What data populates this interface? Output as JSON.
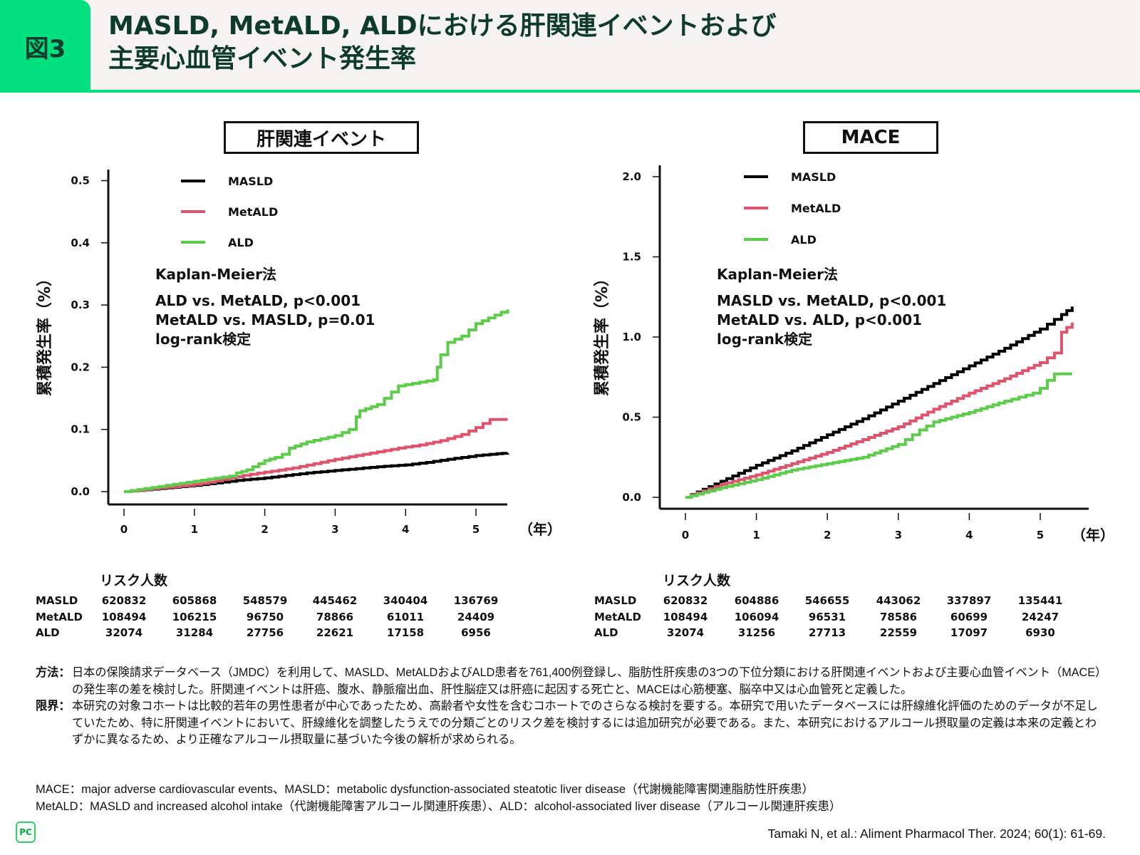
{
  "header": {
    "figure_label": "図3",
    "title_line1": "MASLD, MetALD, ALDにおける肝関連イベントおよび",
    "title_line2": "主要心血管イベント発生率"
  },
  "colors": {
    "accent": "#00e07f",
    "title_text": "#0f3a2e",
    "MASLD": "#000000",
    "MetALD": "#e0536d",
    "ALD": "#5ccc4a"
  },
  "chart_data": [
    {
      "type": "line",
      "subtype": "kaplan-meier-step",
      "title": "肝関連イベント",
      "xlabel": "（年）",
      "ylabel": "累積発生率（%）",
      "xlim": [
        0,
        5.5
      ],
      "ylim": [
        0,
        0.5
      ],
      "xticks": [
        "0",
        "1",
        "2",
        "3",
        "4",
        "5"
      ],
      "yticks": [
        "0.0",
        "0.1",
        "0.2",
        "0.3",
        "0.4",
        "0.5"
      ],
      "legend": [
        "MASLD",
        "MetALD",
        "ALD"
      ],
      "legend_position": "top-left",
      "annotations": [
        "Kaplan-Meier法",
        "ALD vs. MetALD, p<0.001",
        "MetALD vs. MASLD, p=0.01",
        "log-rank検定"
      ],
      "series": [
        {
          "name": "MASLD",
          "x": [
            0,
            0.3,
            0.6,
            1.0,
            1.3,
            1.6,
            2.0,
            2.3,
            2.6,
            3.0,
            3.3,
            3.6,
            4.0,
            4.3,
            4.6,
            5.0,
            5.3,
            5.45
          ],
          "y": [
            0,
            0.003,
            0.006,
            0.01,
            0.014,
            0.018,
            0.022,
            0.026,
            0.03,
            0.034,
            0.037,
            0.04,
            0.043,
            0.047,
            0.052,
            0.058,
            0.061,
            0.062
          ]
        },
        {
          "name": "MetALD",
          "x": [
            0,
            0.5,
            0.9,
            1.2,
            1.5,
            1.8,
            2.1,
            2.4,
            2.7,
            3.0,
            3.3,
            3.6,
            3.9,
            4.2,
            4.5,
            4.8,
            5.0,
            5.2,
            5.45
          ],
          "y": [
            0,
            0.006,
            0.01,
            0.015,
            0.022,
            0.028,
            0.033,
            0.038,
            0.045,
            0.052,
            0.058,
            0.064,
            0.07,
            0.075,
            0.082,
            0.092,
            0.103,
            0.116,
            0.116
          ]
        },
        {
          "name": "ALD",
          "x": [
            0,
            0.3,
            0.6,
            0.9,
            1.2,
            1.5,
            1.6,
            1.75,
            2.0,
            2.15,
            2.25,
            2.35,
            2.6,
            3.0,
            3.2,
            3.3,
            3.35,
            3.6,
            3.8,
            3.9,
            4.4,
            4.45,
            4.5,
            4.6,
            4.8,
            5.0,
            5.45
          ],
          "y": [
            0,
            0.005,
            0.01,
            0.015,
            0.02,
            0.025,
            0.03,
            0.035,
            0.05,
            0.055,
            0.06,
            0.07,
            0.08,
            0.09,
            0.1,
            0.12,
            0.13,
            0.14,
            0.16,
            0.17,
            0.18,
            0.2,
            0.22,
            0.24,
            0.25,
            0.27,
            0.293
          ]
        }
      ],
      "risk_table": {
        "title": "リスク人数",
        "rows": [
          {
            "label": "MASLD",
            "values": [
              "620832",
              "605868",
              "548579",
              "445462",
              "340404",
              "136769"
            ]
          },
          {
            "label": "MetALD",
            "values": [
              "108494",
              "106215",
              "96750",
              "78866",
              "61011",
              "24409"
            ]
          },
          {
            "label": "ALD",
            "values": [
              "32074",
              "31284",
              "27756",
              "22621",
              "17158",
              "6956"
            ]
          }
        ]
      }
    },
    {
      "type": "line",
      "subtype": "kaplan-meier-step",
      "title": "MACE",
      "xlabel": "（年）",
      "ylabel": "累積発生率（%）",
      "xlim": [
        0,
        5.5
      ],
      "ylim": [
        0,
        2.0
      ],
      "xticks": [
        "0",
        "1",
        "2",
        "3",
        "4",
        "5"
      ],
      "yticks": [
        "0.0",
        "0.5",
        "1.0",
        "1.5",
        "2.0"
      ],
      "legend": [
        "MASLD",
        "MetALD",
        "ALD"
      ],
      "legend_position": "top-left",
      "annotations": [
        "Kaplan-Meier法",
        "MASLD vs. MetALD, p<0.001",
        "MetALD vs. ALD, p<0.001",
        "log-rank検定"
      ],
      "series": [
        {
          "name": "MASLD",
          "x": [
            0,
            0.5,
            1.0,
            1.5,
            2.0,
            2.5,
            3.0,
            3.5,
            4.0,
            4.5,
            5.0,
            5.3,
            5.45
          ],
          "y": [
            0,
            0.1,
            0.2,
            0.29,
            0.39,
            0.49,
            0.6,
            0.71,
            0.82,
            0.93,
            1.05,
            1.14,
            1.19
          ]
        },
        {
          "name": "MetALD",
          "x": [
            0,
            0.5,
            1.0,
            1.5,
            2.0,
            2.5,
            3.0,
            3.5,
            4.0,
            4.5,
            5.0,
            5.2,
            5.3,
            5.45
          ],
          "y": [
            0,
            0.08,
            0.14,
            0.21,
            0.28,
            0.36,
            0.44,
            0.55,
            0.65,
            0.74,
            0.84,
            0.9,
            1.03,
            1.09
          ]
        },
        {
          "name": "ALD",
          "x": [
            0,
            0.5,
            1.0,
            1.5,
            2.0,
            2.5,
            3.0,
            3.3,
            3.5,
            4.0,
            4.5,
            4.9,
            5.0,
            5.1,
            5.2,
            5.45
          ],
          "y": [
            0,
            0.06,
            0.11,
            0.17,
            0.21,
            0.25,
            0.33,
            0.42,
            0.47,
            0.53,
            0.6,
            0.65,
            0.68,
            0.73,
            0.77,
            0.77
          ]
        }
      ],
      "risk_table": {
        "title": "リスク人数",
        "rows": [
          {
            "label": "MASLD",
            "values": [
              "620832",
              "604886",
              "546655",
              "443062",
              "337897",
              "135441"
            ]
          },
          {
            "label": "MetALD",
            "values": [
              "108494",
              "106094",
              "96531",
              "78586",
              "60699",
              "24247"
            ]
          },
          {
            "label": "ALD",
            "values": [
              "32074",
              "31256",
              "27713",
              "22559",
              "17097",
              "6930"
            ]
          }
        ]
      }
    }
  ],
  "notes": {
    "method_key": "方法：",
    "method_text": "日本の保険請求データベース（JMDC）を利用して、MASLD、MetALDおよびALD患者を761,400例登録し、脂肪性肝疾患の3つの下位分類における肝関連イベントおよび主要心血管イベント（MACE）の発生率の差を検討した。肝関連イベントは肝癌、腹水、静脈瘤出血、肝性脳症又は肝癌に起因する死亡と、MACEは心筋梗塞、脳卒中又は心血管死と定義した。",
    "limit_key": "限界：",
    "limit_text": "本研究の対象コホートは比較的若年の男性患者が中心であったため、高齢者や女性を含むコホートでのさらなる検討を要する。本研究で用いたデータベースには肝線維化評価のためのデータが不足していたため、特に肝関連イベントにおいて、肝線維化を調整したうえでの分類ごとのリスク差を検討するには追加研究が必要である。また、本研究におけるアルコール摂取量の定義は本来の定義とわずかに異なるため、より正確なアルコール摂取量に基づいた今後の解析が求められる。"
  },
  "abbreviations": {
    "line1": "MACE：major adverse cardiovascular events、MASLD：metabolic dysfunction-associated steatotic liver disease（代謝機能障害関連脂肪性肝疾患）",
    "line2": "MetALD：MASLD and increased alcohol intake（代謝機能障害アルコール関連肝疾患）、ALD：alcohol-associated liver disease（アルコール関連肝疾患）"
  },
  "citation": "Tamaki N, et al.: Aliment Pharmacol Ther. 2024; 60(1): 61-69.",
  "logo": {
    "text": "PC",
    "icon": "pc-logo-icon"
  }
}
